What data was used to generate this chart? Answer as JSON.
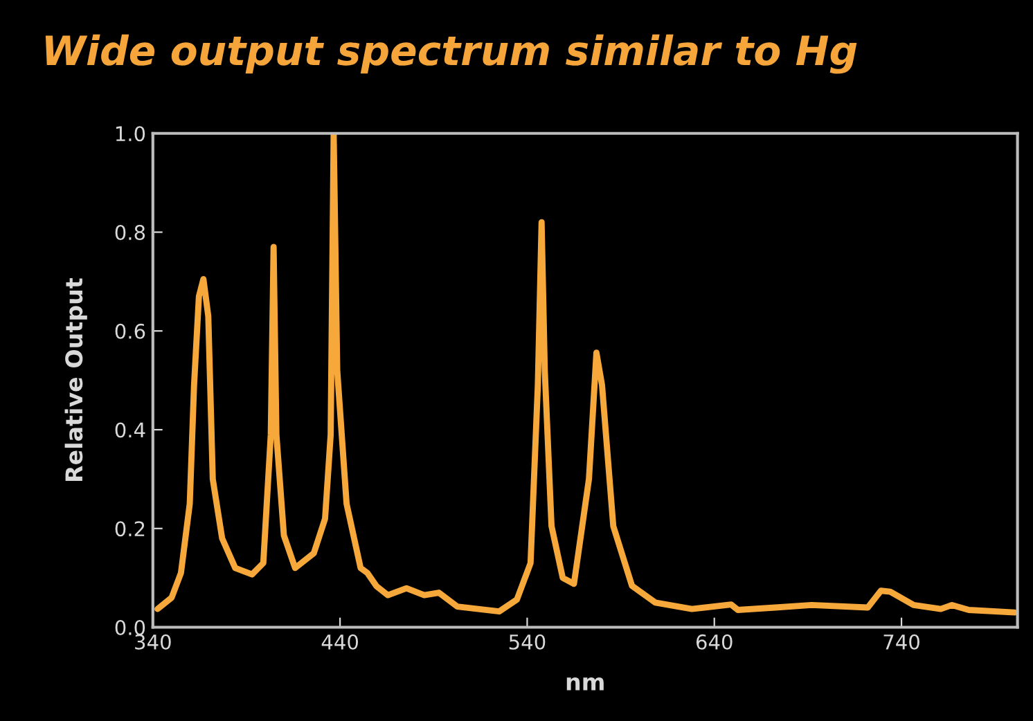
{
  "chart_data": {
    "type": "line",
    "title": "Wide output spectrum similar to Hg",
    "xlabel": "nm",
    "ylabel": "Relative Output",
    "xlim": [
      340,
      802
    ],
    "ylim": [
      0,
      1.0
    ],
    "xticks": [
      340,
      440,
      540,
      640,
      740
    ],
    "yticks": [
      {
        "value": 0,
        "label": "0.0"
      },
      0.2,
      0.4,
      0.6,
      0.8,
      {
        "value": 1.0,
        "label": "1.0"
      }
    ],
    "grid": false,
    "legend": false,
    "marker": "none",
    "line_style": "solid",
    "series": [
      {
        "color": "#f7a83a",
        "x": [
          342.5,
          350,
          355,
          359.7,
          362,
          364.6,
          367,
          369.6,
          372,
          377,
          384,
          393,
          399,
          403,
          404.5,
          406,
          410,
          416,
          426,
          432,
          435,
          436.6,
          438.5,
          443.5,
          451,
          454.6,
          459.5,
          465.6,
          475.5,
          485,
          492.8,
          502.6,
          525,
          534.5,
          541.8,
          545.7,
          547.7,
          549.4,
          553,
          559,
          565,
          573,
          577,
          580,
          586,
          596,
          608.5,
          628,
          649,
          652.6,
          672.6,
          692,
          722,
          729,
          734,
          746.5,
          761,
          767,
          776,
          800.5
        ],
        "values": [
          0.037,
          0.06,
          0.11,
          0.25,
          0.49,
          0.67,
          0.705,
          0.63,
          0.3,
          0.18,
          0.12,
          0.107,
          0.13,
          0.39,
          0.77,
          0.39,
          0.186,
          0.12,
          0.15,
          0.22,
          0.39,
          1.0,
          0.52,
          0.25,
          0.12,
          0.11,
          0.083,
          0.065,
          0.079,
          0.065,
          0.07,
          0.042,
          0.032,
          0.056,
          0.13,
          0.49,
          0.82,
          0.52,
          0.205,
          0.1,
          0.088,
          0.3,
          0.556,
          0.49,
          0.205,
          0.084,
          0.05,
          0.037,
          0.046,
          0.035,
          0.04,
          0.045,
          0.04,
          0.074,
          0.072,
          0.045,
          0.037,
          0.045,
          0.035,
          0.03
        ]
      }
    ]
  }
}
